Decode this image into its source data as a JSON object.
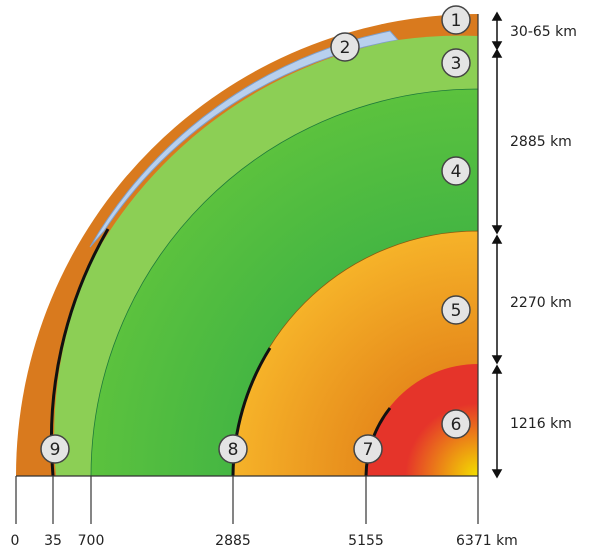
{
  "layer_numbers": [
    "1",
    "2",
    "3",
    "4",
    "5",
    "6",
    "7",
    "8",
    "9"
  ],
  "thickness_labels": [
    "30-65 km",
    "2885 km",
    "2270 km",
    "1216 km"
  ],
  "axis_ticks": [
    "0",
    "35",
    "700",
    "2885",
    "5155",
    "6371 km"
  ],
  "colors": {
    "crust": "#d97a1e",
    "ocean": "#b8d0ee",
    "upper_mantle": "#8ccf55",
    "lower_mantle_light": "#5cc23e",
    "lower_mantle_dark": "#1ea24a",
    "outer_core_light": "#f6b329",
    "outer_core_dark": "#e68a1b",
    "inner_core_light": "#f3e000",
    "inner_core_dark": "#e5342a",
    "badge_fill": "#e4e4e4",
    "line": "#111111"
  }
}
